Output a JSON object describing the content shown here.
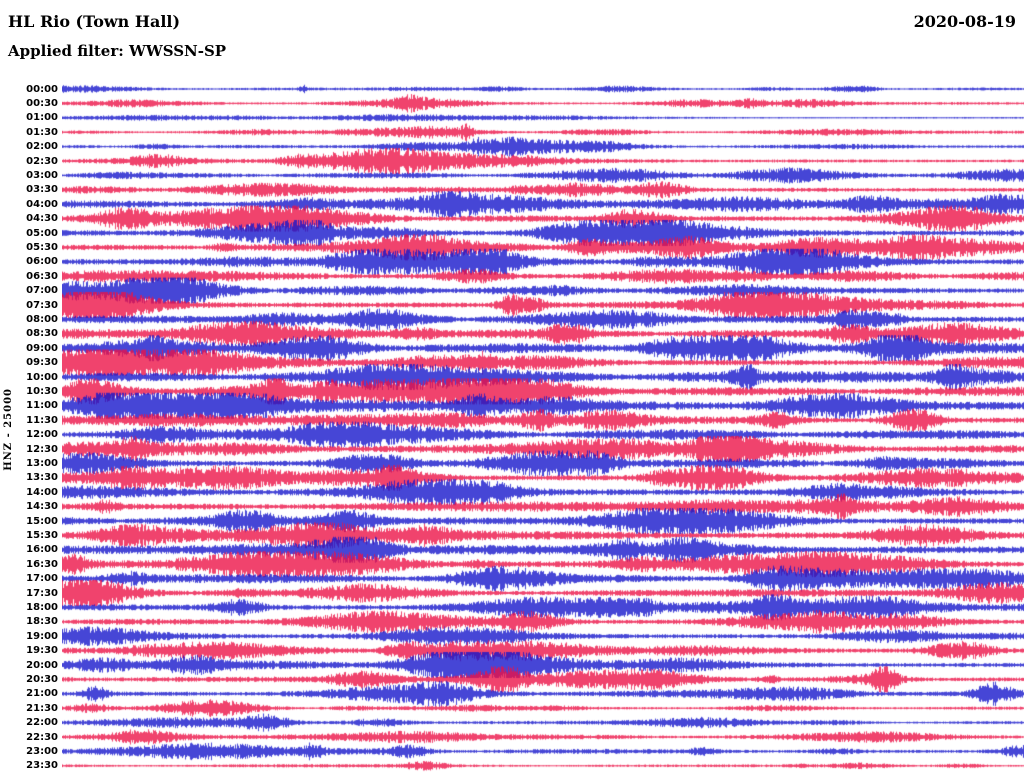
{
  "header": {
    "title": "HL Rio (Town Hall)",
    "date": "2020-08-19",
    "filter": "Applied filter: WWSSN-SP"
  },
  "chart_data": {
    "type": "line",
    "subtype": "helicorder-seismogram",
    "title": "HL Rio (Town Hall)",
    "date": "2020-08-19",
    "filter": "WWSSN-SP",
    "ylabel": "HNZ - 25000",
    "minutes_per_row": 30,
    "row_count": 48,
    "time_start": "00:00",
    "time_end": "23:30",
    "palette": {
      "blue": "#1616cc",
      "red": "#ec1347"
    },
    "rows": [
      {
        "label": "00:00",
        "color": "blue",
        "amp": 1.6,
        "events": [
          {
            "pos": 0.25,
            "h": 2.0,
            "w": 4
          }
        ]
      },
      {
        "label": "00:30",
        "color": "red",
        "amp": 2.0
      },
      {
        "label": "01:00",
        "color": "blue",
        "amp": 1.8
      },
      {
        "label": "01:30",
        "color": "red",
        "amp": 2.0,
        "events": [
          {
            "pos": 0.42,
            "h": 2.6,
            "w": 5
          }
        ]
      },
      {
        "label": "02:00",
        "color": "blue",
        "amp": 2.4,
        "events": [
          {
            "pos": 0.43,
            "h": 2.0,
            "w": 6
          }
        ]
      },
      {
        "label": "02:30",
        "color": "red",
        "amp": 3.2
      },
      {
        "label": "03:00",
        "color": "blue",
        "amp": 3.2
      },
      {
        "label": "03:30",
        "color": "red",
        "amp": 4.2
      },
      {
        "label": "04:00",
        "color": "blue",
        "amp": 5.0
      },
      {
        "label": "04:30",
        "color": "red",
        "amp": 5.0
      },
      {
        "label": "05:00",
        "color": "blue",
        "amp": 5.2
      },
      {
        "label": "05:30",
        "color": "red",
        "amp": 5.0
      },
      {
        "label": "06:00",
        "color": "blue",
        "amp": 5.4
      },
      {
        "label": "06:30",
        "color": "red",
        "amp": 5.2
      },
      {
        "label": "07:00",
        "color": "blue",
        "amp": 5.4
      },
      {
        "label": "07:30",
        "color": "red",
        "amp": 5.6
      },
      {
        "label": "08:00",
        "color": "blue",
        "amp": 5.8
      },
      {
        "label": "08:30",
        "color": "red",
        "amp": 5.8
      },
      {
        "label": "09:00",
        "color": "blue",
        "amp": 6.0
      },
      {
        "label": "09:30",
        "color": "red",
        "amp": 5.8
      },
      {
        "label": "10:00",
        "color": "blue",
        "amp": 6.0
      },
      {
        "label": "10:30",
        "color": "red",
        "amp": 5.8
      },
      {
        "label": "11:00",
        "color": "blue",
        "amp": 6.0
      },
      {
        "label": "11:30",
        "color": "red",
        "amp": 5.6
      },
      {
        "label": "12:00",
        "color": "blue",
        "amp": 5.8
      },
      {
        "label": "12:30",
        "color": "red",
        "amp": 5.6
      },
      {
        "label": "13:00",
        "color": "blue",
        "amp": 5.8
      },
      {
        "label": "13:30",
        "color": "red",
        "amp": 5.6
      },
      {
        "label": "14:00",
        "color": "blue",
        "amp": 5.8
      },
      {
        "label": "14:30",
        "color": "red",
        "amp": 5.6
      },
      {
        "label": "15:00",
        "color": "blue",
        "amp": 5.8
      },
      {
        "label": "15:30",
        "color": "red",
        "amp": 5.8
      },
      {
        "label": "16:00",
        "color": "blue",
        "amp": 5.6
      },
      {
        "label": "16:30",
        "color": "red",
        "amp": 5.4
      },
      {
        "label": "17:00",
        "color": "blue",
        "amp": 5.4
      },
      {
        "label": "17:30",
        "color": "red",
        "amp": 5.0
      },
      {
        "label": "18:00",
        "color": "blue",
        "amp": 5.0
      },
      {
        "label": "18:30",
        "color": "red",
        "amp": 5.0
      },
      {
        "label": "19:00",
        "color": "blue",
        "amp": 4.8
      },
      {
        "label": "19:30",
        "color": "red",
        "amp": 4.6
      },
      {
        "label": "20:00",
        "color": "blue",
        "amp": 4.6
      },
      {
        "label": "20:30",
        "color": "red",
        "amp": 4.6,
        "events": [
          {
            "pos": 0.855,
            "h": 2.6,
            "w": 13
          }
        ]
      },
      {
        "label": "21:00",
        "color": "blue",
        "amp": 4.2
      },
      {
        "label": "21:30",
        "color": "red",
        "amp": 2.6
      },
      {
        "label": "22:00",
        "color": "blue",
        "amp": 2.2
      },
      {
        "label": "22:30",
        "color": "red",
        "amp": 3.0
      },
      {
        "label": "23:00",
        "color": "blue",
        "amp": 3.4,
        "events": [
          {
            "pos": 0.26,
            "h": 1.6,
            "w": 10
          }
        ]
      },
      {
        "label": "23:30",
        "color": "red",
        "amp": 2.0
      }
    ]
  }
}
